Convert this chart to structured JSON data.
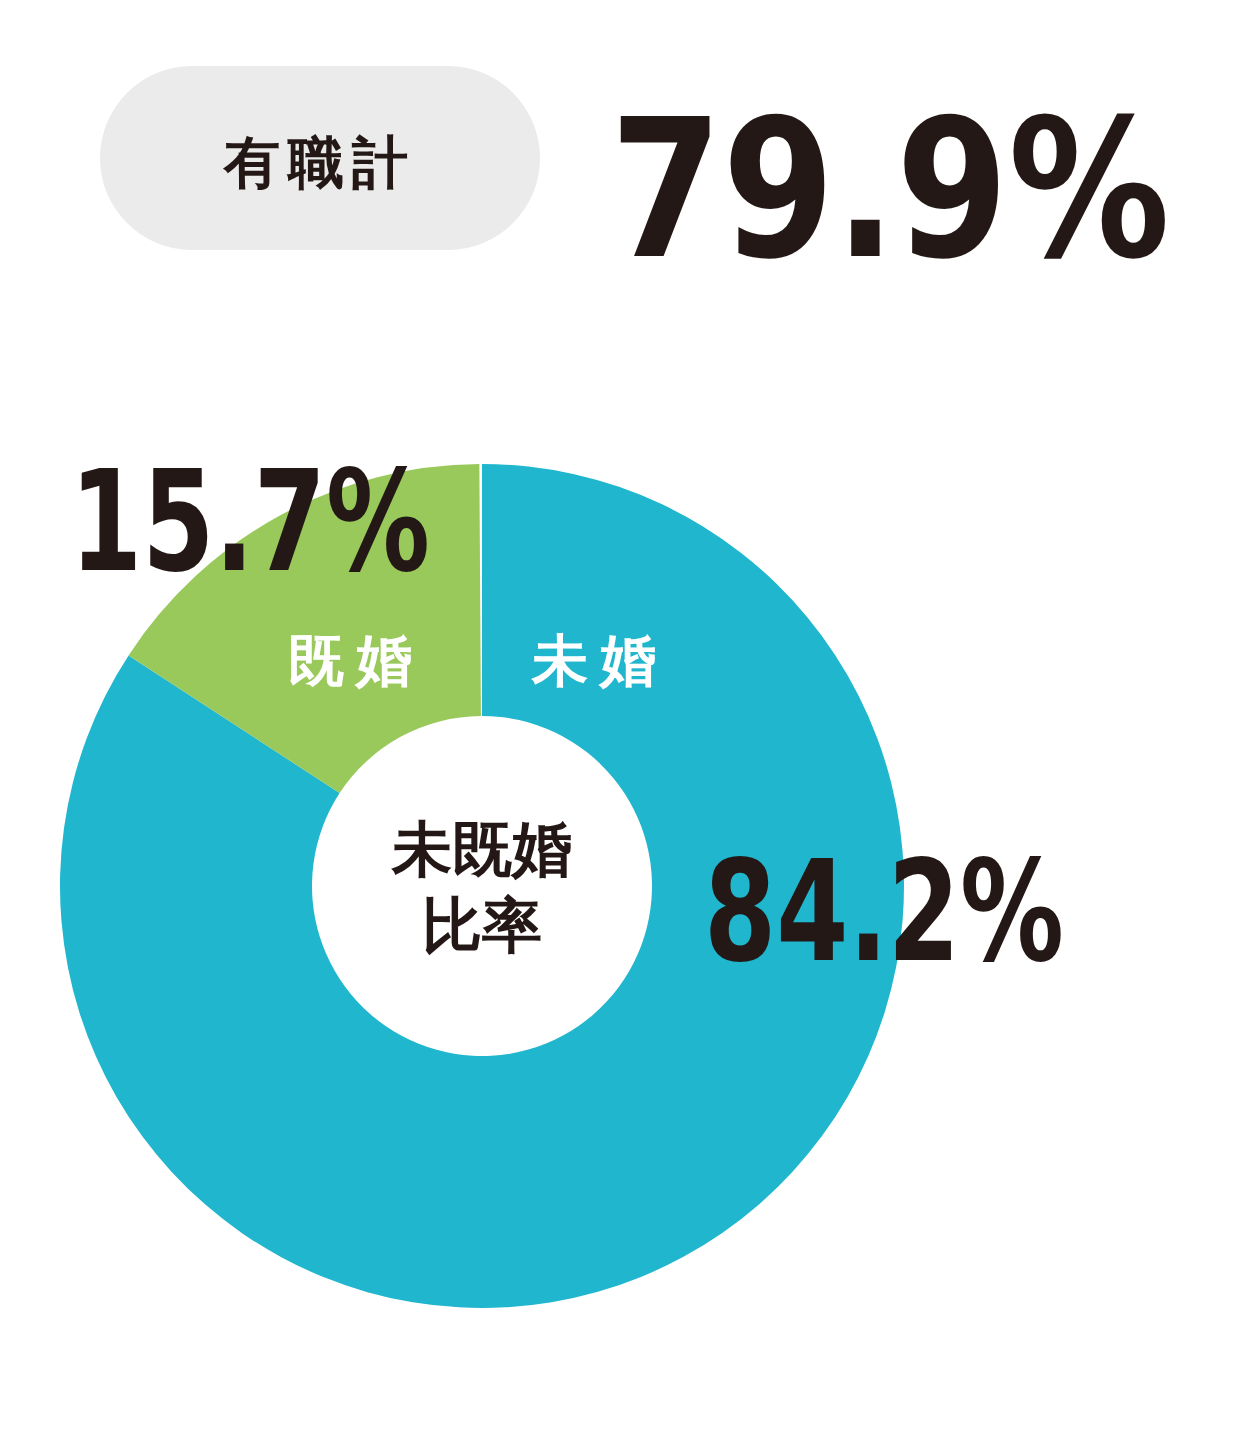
{
  "chart_data": {
    "type": "donut",
    "title": "未既婚比率",
    "categories": [
      "未婚",
      "既婚"
    ],
    "values": [
      84.2,
      15.7
    ],
    "colors": [
      "#1fb6ce",
      "#99c95a"
    ],
    "value_labels": [
      "84.2%",
      "15.7%"
    ],
    "annotations": [
      "有職計",
      "79.9%"
    ]
  }
}
